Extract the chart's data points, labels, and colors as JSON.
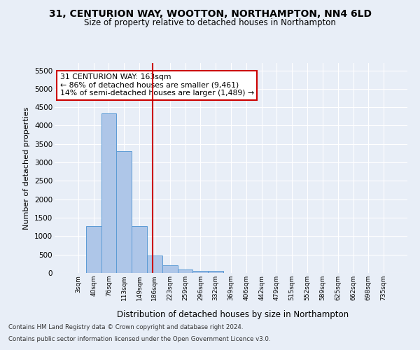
{
  "title": "31, CENTURION WAY, WOOTTON, NORTHAMPTON, NN4 6LD",
  "subtitle": "Size of property relative to detached houses in Northampton",
  "xlabel": "Distribution of detached houses by size in Northampton",
  "ylabel": "Number of detached properties",
  "footnote1": "Contains HM Land Registry data © Crown copyright and database right 2024.",
  "footnote2": "Contains public sector information licensed under the Open Government Licence v3.0.",
  "bin_labels": [
    "3sqm",
    "40sqm",
    "76sqm",
    "113sqm",
    "149sqm",
    "186sqm",
    "223sqm",
    "259sqm",
    "296sqm",
    "332sqm",
    "369sqm",
    "406sqm",
    "442sqm",
    "479sqm",
    "515sqm",
    "552sqm",
    "589sqm",
    "625sqm",
    "662sqm",
    "698sqm",
    "735sqm"
  ],
  "bar_values": [
    0,
    1270,
    4330,
    3300,
    1280,
    480,
    215,
    90,
    60,
    60,
    0,
    0,
    0,
    0,
    0,
    0,
    0,
    0,
    0,
    0,
    0
  ],
  "bar_color": "#aec6e8",
  "bar_edge_color": "#5b9bd5",
  "vline_color": "#cc0000",
  "ylim_max": 5700,
  "yticks": [
    0,
    500,
    1000,
    1500,
    2000,
    2500,
    3000,
    3500,
    4000,
    4500,
    5000,
    5500
  ],
  "annotation_text": "31 CENTURION WAY: 163sqm\n← 86% of detached houses are smaller (9,461)\n14% of semi-detached houses are larger (1,489) →",
  "annotation_box_color": "#cc0000",
  "bg_color": "#e8eef7",
  "grid_color": "#ffffff",
  "num_bins": 21,
  "vline_x": 4.878
}
